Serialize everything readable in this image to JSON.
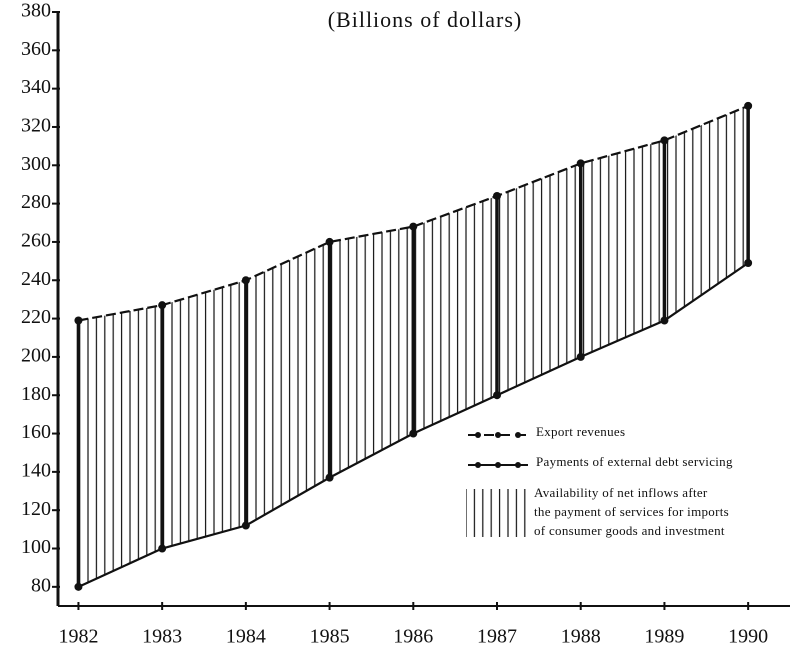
{
  "chart_data": {
    "type": "line",
    "title": "(Billions of dollars)",
    "x": [
      1982,
      1983,
      1984,
      1985,
      1986,
      1987,
      1988,
      1989,
      1990
    ],
    "xlim": [
      1981.72,
      1990.5
    ],
    "xticks": [
      1982,
      1983,
      1984,
      1985,
      1986,
      1987,
      1988,
      1989,
      1990
    ],
    "ylim": [
      70,
      380
    ],
    "yticks": [
      80,
      100,
      120,
      140,
      160,
      180,
      200,
      220,
      240,
      260,
      280,
      300,
      320,
      340,
      360,
      380
    ],
    "series": [
      {
        "name": "Export revenues",
        "color": "#111111",
        "style": "dashed",
        "values": [
          219,
          227,
          240,
          260,
          268,
          284,
          301,
          313,
          331
        ]
      },
      {
        "name": "Payments of external debt servicing",
        "color": "#111111",
        "style": "solid",
        "values": [
          80,
          100,
          112,
          137,
          160,
          180,
          200,
          219,
          249
        ]
      }
    ],
    "fill_between_label": [
      "Availability of net inflows after",
      "the payment of services for imports",
      "of consumer goods and investment"
    ]
  }
}
